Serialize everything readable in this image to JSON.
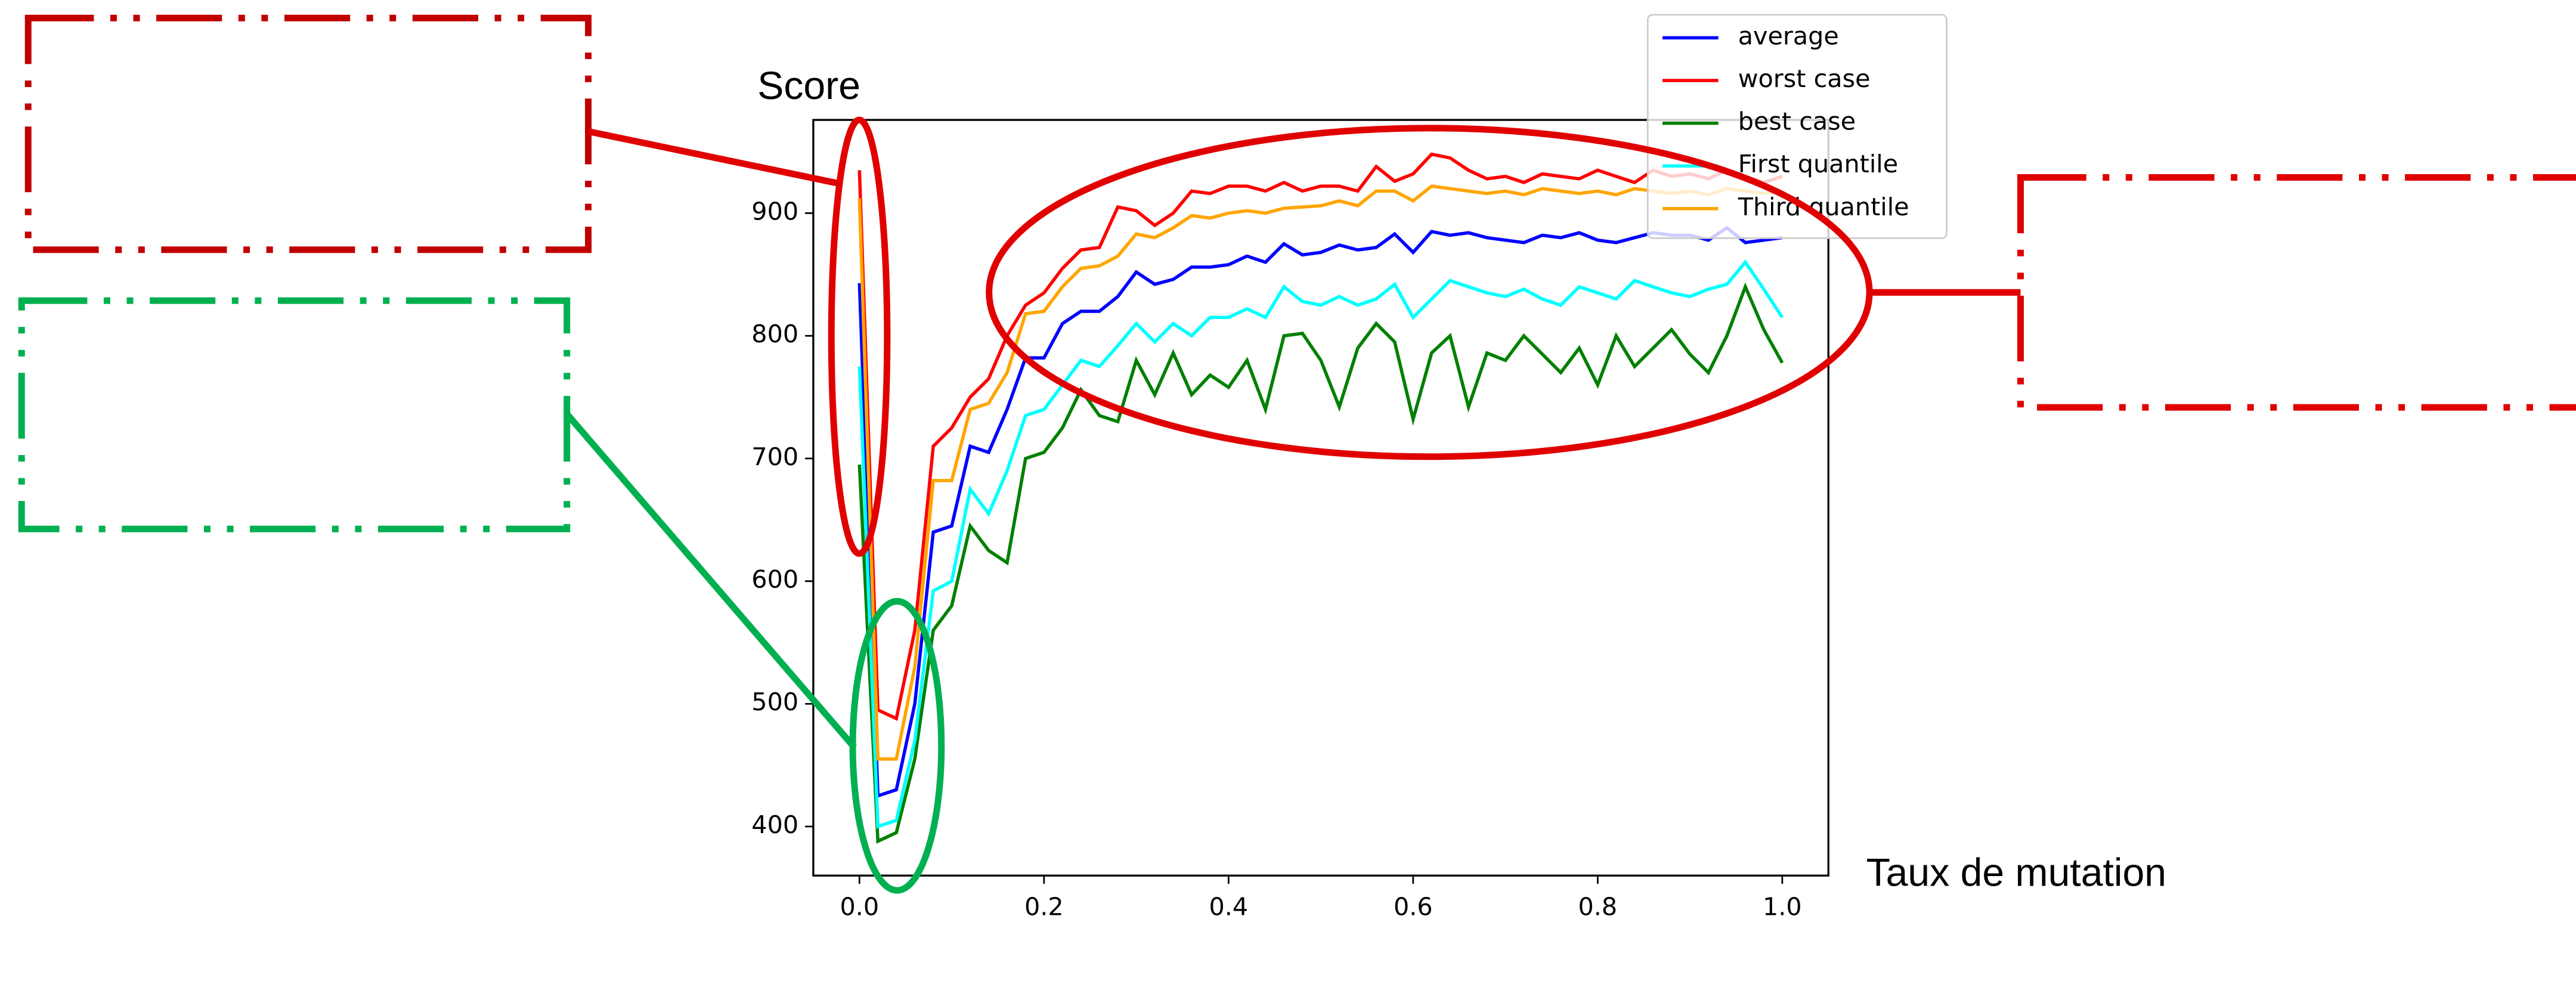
{
  "chart_data": {
    "type": "line",
    "xlabel": "Taux de mutation",
    "ylabel": "Score",
    "x": [
      0,
      0.02,
      0.04,
      0.06,
      0.08,
      0.1,
      0.12,
      0.14,
      0.16,
      0.18,
      0.2,
      0.22,
      0.24,
      0.26,
      0.28,
      0.3,
      0.32,
      0.34,
      0.36,
      0.38,
      0.4,
      0.42,
      0.44,
      0.46,
      0.48,
      0.5,
      0.52,
      0.54,
      0.56,
      0.58,
      0.6,
      0.62,
      0.64,
      0.66,
      0.68,
      0.7,
      0.72,
      0.74,
      0.76,
      0.78,
      0.8,
      0.82,
      0.84,
      0.86,
      0.88,
      0.9,
      0.92,
      0.94,
      0.96,
      0.98,
      1.0
    ],
    "series": [
      {
        "name": "average",
        "color": "blue",
        "values": [
          843,
          425,
          430,
          500,
          640,
          645,
          710,
          705,
          740,
          782,
          782,
          810,
          820,
          820,
          832,
          852,
          842,
          846,
          856,
          856,
          858,
          865,
          860,
          875,
          866,
          868,
          874,
          870,
          872,
          883,
          868,
          885,
          882,
          884,
          880,
          878,
          876,
          882,
          880,
          884,
          878,
          876,
          880,
          884,
          882,
          882,
          878,
          888,
          876,
          878,
          880
        ]
      },
      {
        "name": "worst case",
        "color": "red",
        "values": [
          935,
          495,
          488,
          560,
          710,
          725,
          750,
          765,
          800,
          825,
          835,
          855,
          870,
          872,
          905,
          902,
          890,
          900,
          918,
          916,
          922,
          922,
          918,
          925,
          918,
          922,
          922,
          918,
          938,
          926,
          932,
          948,
          945,
          935,
          928,
          930,
          925,
          932,
          930,
          928,
          935,
          930,
          925,
          935,
          930,
          932,
          928,
          935,
          930,
          925,
          930
        ]
      },
      {
        "name": "best case",
        "color": "green",
        "values": [
          695,
          388,
          395,
          455,
          560,
          580,
          645,
          625,
          615,
          700,
          705,
          725,
          756,
          735,
          730,
          780,
          752,
          786,
          752,
          768,
          758,
          780,
          740,
          800,
          802,
          780,
          742,
          790,
          810,
          795,
          732,
          786,
          800,
          742,
          786,
          780,
          800,
          785,
          770,
          790,
          760,
          800,
          775,
          790,
          805,
          785,
          770,
          800,
          840,
          805,
          778
        ]
      },
      {
        "name": "First quantile",
        "color": "cyan",
        "values": [
          775,
          400,
          405,
          470,
          592,
          600,
          675,
          655,
          690,
          735,
          740,
          760,
          780,
          775,
          792,
          810,
          795,
          810,
          800,
          815,
          815,
          822,
          815,
          840,
          828,
          825,
          832,
          825,
          830,
          842,
          815,
          830,
          845,
          840,
          835,
          832,
          838,
          830,
          825,
          840,
          835,
          830,
          845,
          840,
          835,
          832,
          838,
          842,
          860,
          838,
          815
        ]
      },
      {
        "name": "Third quantile",
        "color": "orange",
        "values": [
          912,
          455,
          455,
          530,
          682,
          682,
          740,
          745,
          770,
          818,
          820,
          840,
          855,
          857,
          865,
          883,
          880,
          888,
          898,
          896,
          900,
          902,
          900,
          904,
          905,
          906,
          910,
          906,
          918,
          918,
          910,
          922,
          920,
          918,
          916,
          918,
          915,
          920,
          918,
          916,
          918,
          915,
          920,
          918,
          916,
          918,
          915,
          920,
          918,
          916,
          918
        ]
      }
    ],
    "xlim": [
      -0.05,
      1.05
    ],
    "ylim": [
      360,
      976
    ],
    "xticks": [
      {
        "value": 0,
        "label": "0.0"
      },
      {
        "value": 0.2,
        "label": "0.2"
      },
      {
        "value": 0.4,
        "label": "0.4"
      },
      {
        "value": 0.6,
        "label": "0.6"
      },
      {
        "value": 0.8,
        "label": "0.8"
      },
      {
        "value": 1,
        "label": "1.0"
      }
    ],
    "yticks": [
      400,
      500,
      600,
      700,
      800,
      900
    ],
    "legend": "upper right"
  }
}
